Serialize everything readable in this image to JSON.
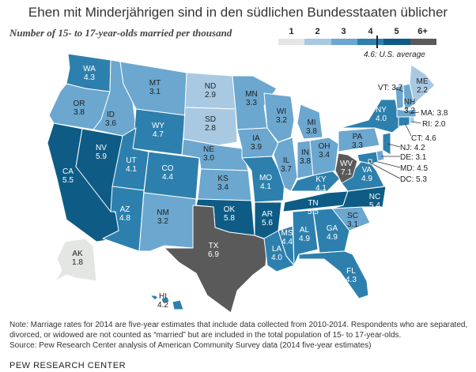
{
  "title": "Ehen mit Minderjährigen sind in den südlichen Bundesstaaten üblicher",
  "subtitle": "Number of 15- to 17-year-olds married per thousand",
  "legend": {
    "labels": [
      "1",
      "2",
      "3",
      "4",
      "5",
      "6+"
    ],
    "colors": [
      "#e3e6e3",
      "#a9c9e2",
      "#6ba7cf",
      "#2d80ad",
      "#0e5c86",
      "#5a5a5a"
    ],
    "average_label": "4.6: U.S. average"
  },
  "states": [
    {
      "abbr": "WA",
      "value": "4.3",
      "color": "#2d80ad"
    },
    {
      "abbr": "OR",
      "value": "3.8",
      "color": "#6ba7cf"
    },
    {
      "abbr": "CA",
      "value": "5.5",
      "color": "#0e5c86"
    },
    {
      "abbr": "NV",
      "value": "5.9",
      "color": "#0e5c86"
    },
    {
      "abbr": "ID",
      "value": "3.6",
      "color": "#6ba7cf"
    },
    {
      "abbr": "MT",
      "value": "3.1",
      "color": "#6ba7cf"
    },
    {
      "abbr": "WY",
      "value": "4.7",
      "color": "#2d80ad"
    },
    {
      "abbr": "UT",
      "value": "4.1",
      "color": "#2d80ad"
    },
    {
      "abbr": "AZ",
      "value": "4.8",
      "color": "#2d80ad"
    },
    {
      "abbr": "CO",
      "value": "4.4",
      "color": "#2d80ad"
    },
    {
      "abbr": "NM",
      "value": "3.2",
      "color": "#6ba7cf"
    },
    {
      "abbr": "ND",
      "value": "2.9",
      "color": "#a9c9e2"
    },
    {
      "abbr": "SD",
      "value": "2.8",
      "color": "#a9c9e2"
    },
    {
      "abbr": "NE",
      "value": "3.0",
      "color": "#6ba7cf"
    },
    {
      "abbr": "KS",
      "value": "3.4",
      "color": "#6ba7cf"
    },
    {
      "abbr": "OK",
      "value": "5.8",
      "color": "#0e5c86"
    },
    {
      "abbr": "TX",
      "value": "6.9",
      "color": "#5a5a5a"
    },
    {
      "abbr": "MN",
      "value": "3.3",
      "color": "#6ba7cf"
    },
    {
      "abbr": "IA",
      "value": "3.9",
      "color": "#6ba7cf"
    },
    {
      "abbr": "MO",
      "value": "4.1",
      "color": "#2d80ad"
    },
    {
      "abbr": "AR",
      "value": "5.6",
      "color": "#0e5c86"
    },
    {
      "abbr": "LA",
      "value": "4.0",
      "color": "#2d80ad"
    },
    {
      "abbr": "WI",
      "value": "3.2",
      "color": "#6ba7cf"
    },
    {
      "abbr": "IL",
      "value": "3.7",
      "color": "#6ba7cf"
    },
    {
      "abbr": "MS",
      "value": "4.4",
      "color": "#2d80ad"
    },
    {
      "abbr": "MI",
      "value": "3.8",
      "color": "#6ba7cf"
    },
    {
      "abbr": "IN",
      "value": "3.8",
      "color": "#6ba7cf"
    },
    {
      "abbr": "KY",
      "value": "4.1",
      "color": "#2d80ad"
    },
    {
      "abbr": "TN",
      "value": "5.5",
      "color": "#0e5c86"
    },
    {
      "abbr": "AL",
      "value": "4.9",
      "color": "#2d80ad"
    },
    {
      "abbr": "OH",
      "value": "3.4",
      "color": "#6ba7cf"
    },
    {
      "abbr": "GA",
      "value": "4.9",
      "color": "#2d80ad"
    },
    {
      "abbr": "FL",
      "value": "4.3",
      "color": "#2d80ad"
    },
    {
      "abbr": "SC",
      "value": "3.1",
      "color": "#6ba7cf"
    },
    {
      "abbr": "NC",
      "value": "5.4",
      "color": "#0e5c86"
    },
    {
      "abbr": "VA",
      "value": "4.9",
      "color": "#2d80ad"
    },
    {
      "abbr": "WV",
      "value": "7.1",
      "color": "#5a5a5a"
    },
    {
      "abbr": "PA",
      "value": "3.3",
      "color": "#6ba7cf"
    },
    {
      "abbr": "NY",
      "value": "4.0",
      "color": "#2d80ad"
    },
    {
      "abbr": "ME",
      "value": "2.2",
      "color": "#a9c9e2"
    },
    {
      "abbr": "VT",
      "value": "3.7",
      "color": "#6ba7cf"
    },
    {
      "abbr": "NH",
      "value": "3.2",
      "color": "#6ba7cf"
    },
    {
      "abbr": "MA",
      "value": "3.8",
      "color": "#6ba7cf"
    },
    {
      "abbr": "RI",
      "value": "2.0",
      "color": "#a9c9e2"
    },
    {
      "abbr": "CT",
      "value": "4.6",
      "color": "#2d80ad"
    },
    {
      "abbr": "NJ",
      "value": "4.2",
      "color": "#2d80ad"
    },
    {
      "abbr": "DE",
      "value": "3.1",
      "color": "#6ba7cf"
    },
    {
      "abbr": "MD",
      "value": "4.5",
      "color": "#2d80ad"
    },
    {
      "abbr": "DC",
      "value": "5.3",
      "color": "#0e5c86"
    },
    {
      "abbr": "AK",
      "value": "1.8",
      "color": "#e3e6e3"
    },
    {
      "abbr": "HI",
      "value": "4.2",
      "color": "#2d80ad"
    }
  ],
  "note": "Note: Marriage rates for 2014 are five-year estimates that include data collected from 2010-2014. Respondents who are separated, divorced, or widowed are not counted as “married” but are included in the total population of 15- to 17-year-olds.",
  "source": "Source: Pew Research Center analysis of American Community Survey data (2014 five-year estimates)",
  "credit": "PEW RESEARCH CENTER"
}
